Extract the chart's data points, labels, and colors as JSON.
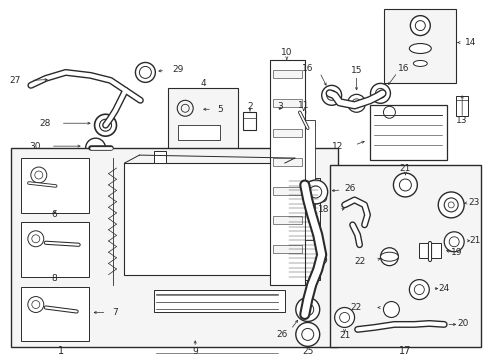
{
  "bg_color": "#f5f5f5",
  "line_color": "#2a2a2a",
  "white": "#ffffff",
  "light_gray": "#e8e8e8",
  "fig_width": 4.89,
  "fig_height": 3.6,
  "dpi": 100
}
